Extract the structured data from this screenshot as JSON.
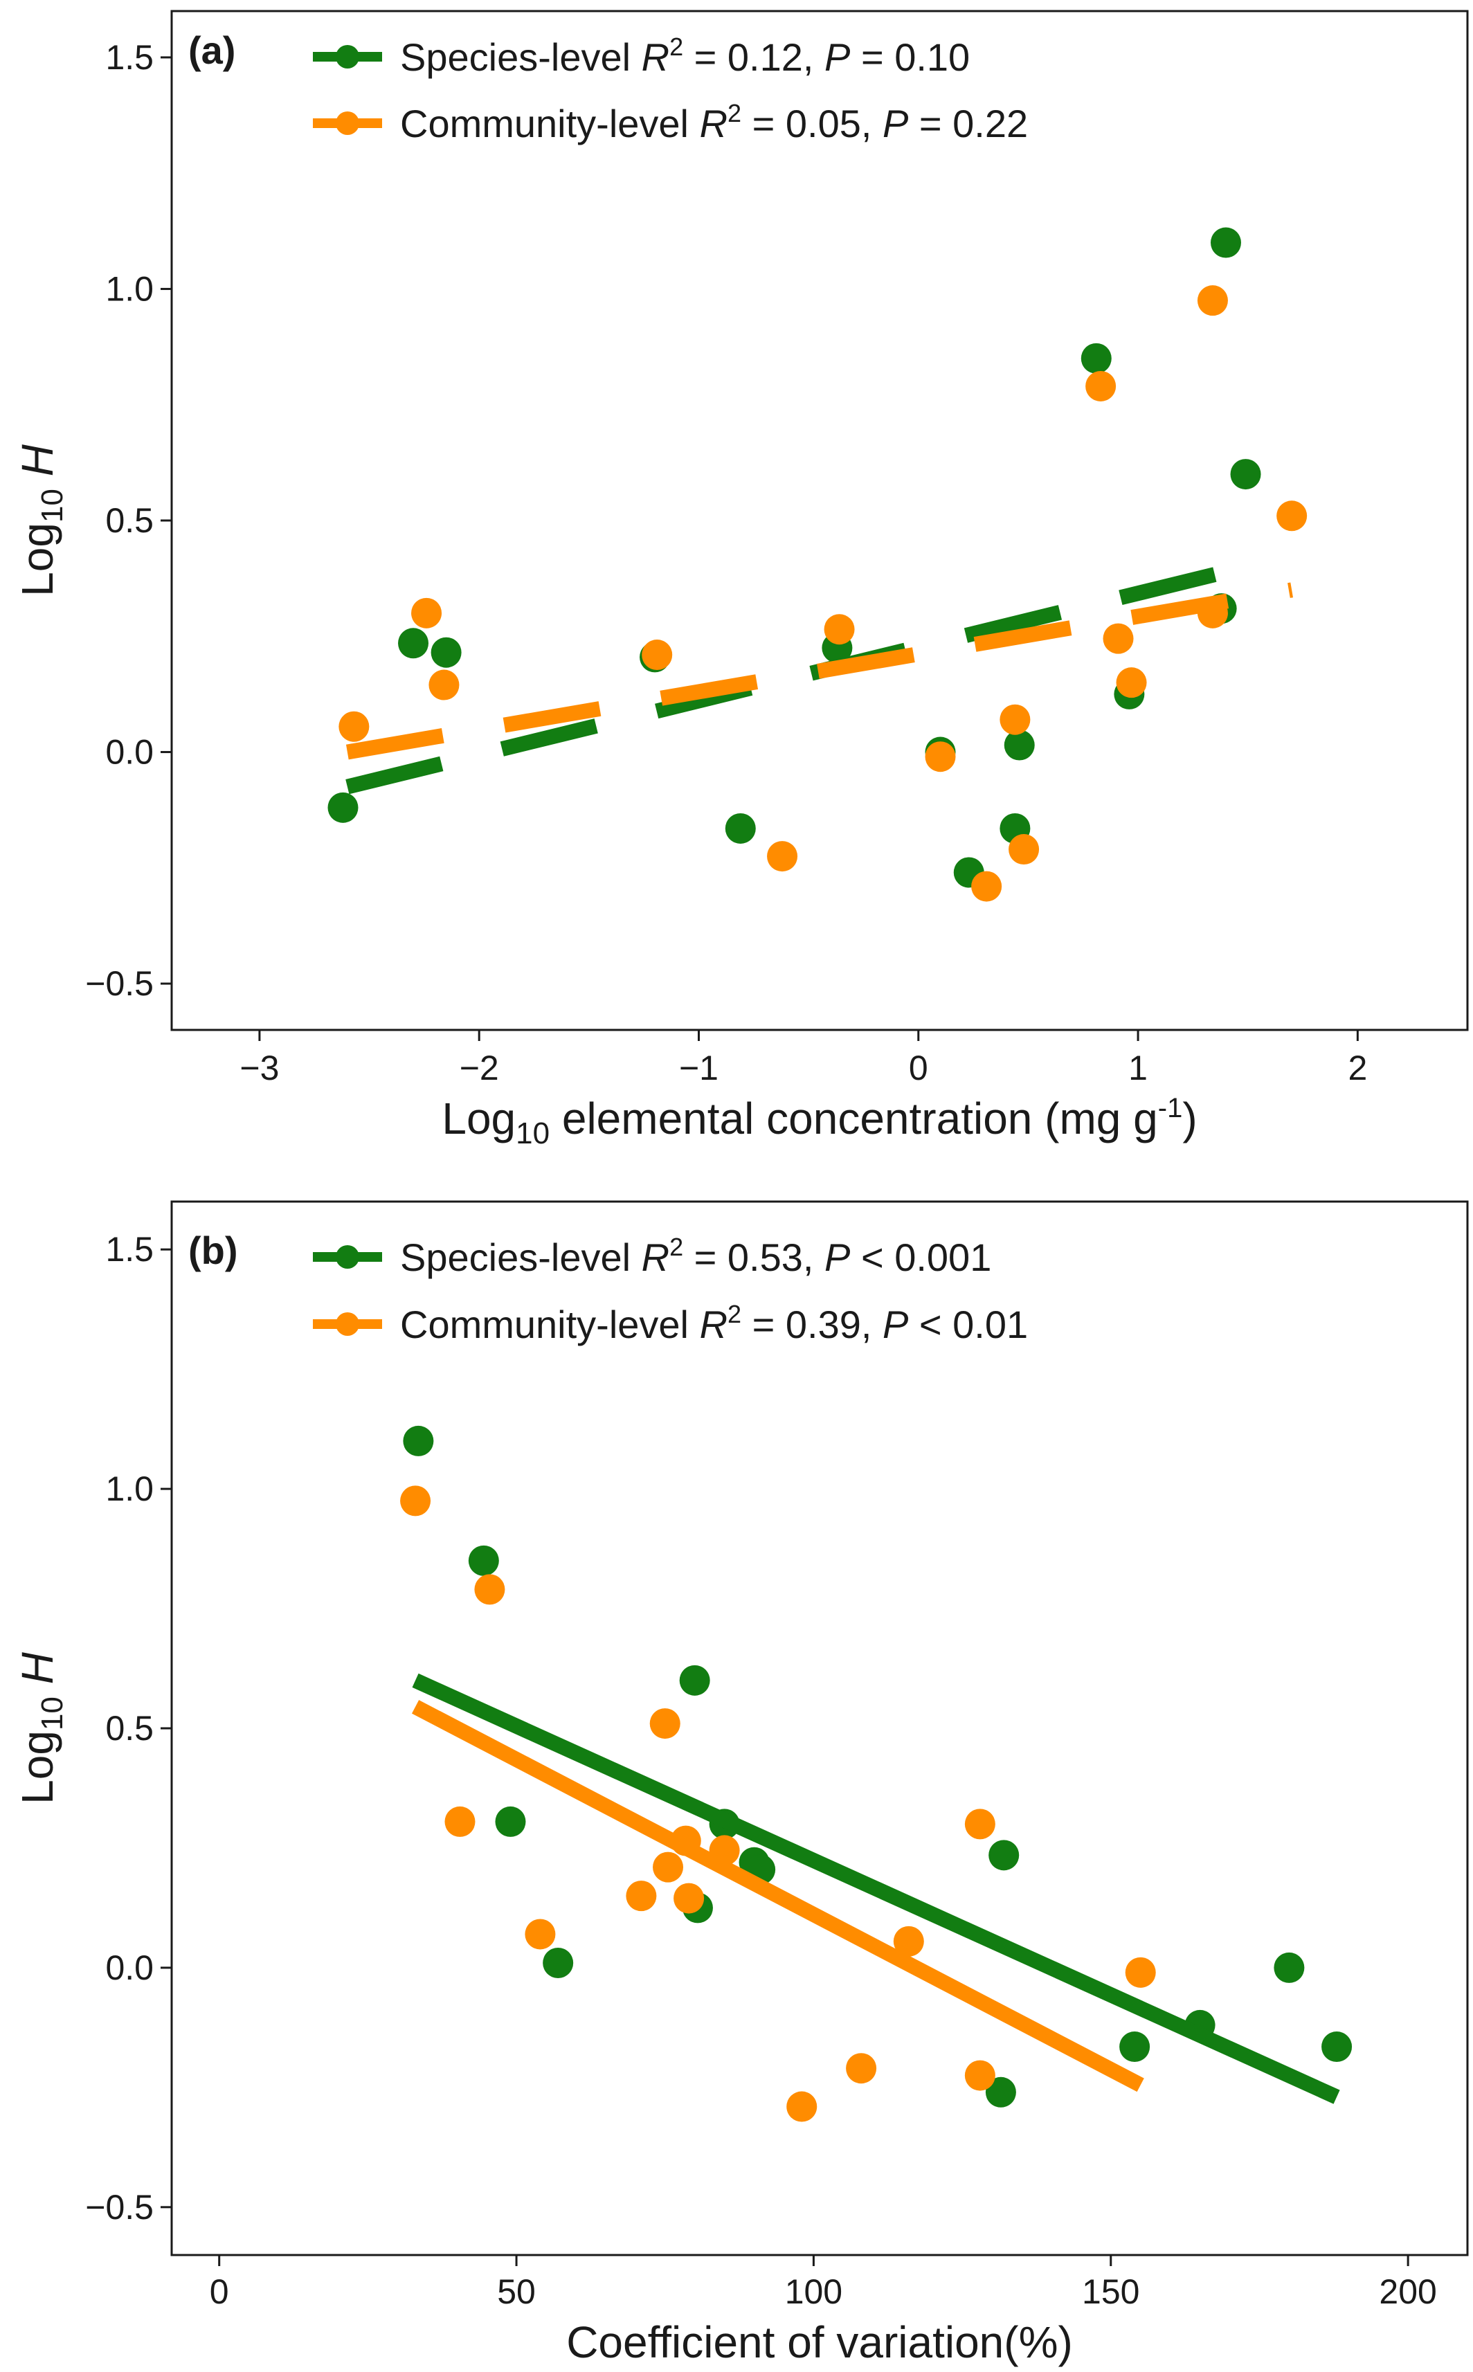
{
  "chart_data": [
    {
      "type": "scatter",
      "panel": "(a)",
      "xlabel": "Log10 elemental concentration (mg g-1)",
      "xlabel_parts": {
        "pre": "Log",
        "sub": "10",
        "mid": " elemental concentration (mg g",
        "sup": "-1",
        "post": ")"
      },
      "ylabel": "Log10 H",
      "ylabel_parts": {
        "pre": "Log",
        "sub": "10",
        "italic": "H"
      },
      "xlim": [
        -3.4,
        2.5
      ],
      "ylim": [
        -0.6,
        1.6
      ],
      "xticks": [
        -3,
        -2,
        -1,
        0,
        1,
        2
      ],
      "xtick_labels": [
        "−3",
        "−2",
        "−1",
        "0",
        "1",
        "2"
      ],
      "yticks": [
        -0.5,
        0.0,
        0.5,
        1.0,
        1.5
      ],
      "ytick_labels": [
        "−0.5",
        "0.0",
        "0.5",
        "1.0",
        "1.5"
      ],
      "grid": false,
      "legend_position": "top-left",
      "series": [
        {
          "name": "Species-level",
          "stat_label": "Species-level R2 = 0.12, P = 0.10",
          "stat_parts": {
            "pre": "Species-level ",
            "r": "R",
            "r_sup": "2",
            "mid": " = 0.12, ",
            "p": "P",
            "post": " = 0.10"
          },
          "color": "#127D12",
          "line_style": "dashed",
          "fit": {
            "x": [
              -2.6,
              1.45
            ],
            "y": [
              -0.075,
              0.395
            ]
          },
          "points": [
            {
              "x": -2.62,
              "y": -0.12
            },
            {
              "x": -2.3,
              "y": 0.235
            },
            {
              "x": -2.15,
              "y": 0.215
            },
            {
              "x": -1.2,
              "y": 0.205
            },
            {
              "x": -0.81,
              "y": -0.165
            },
            {
              "x": -0.37,
              "y": 0.225
            },
            {
              "x": 0.1,
              "y": 0.0
            },
            {
              "x": 0.23,
              "y": -0.26
            },
            {
              "x": 0.44,
              "y": -0.165
            },
            {
              "x": 0.46,
              "y": 0.015
            },
            {
              "x": 0.81,
              "y": 0.85
            },
            {
              "x": 0.96,
              "y": 0.125
            },
            {
              "x": 1.38,
              "y": 0.31
            },
            {
              "x": 1.4,
              "y": 1.1
            },
            {
              "x": 1.49,
              "y": 0.6
            }
          ]
        },
        {
          "name": "Community-level",
          "stat_label": "Community-level R2 = 0.05, P = 0.22",
          "stat_parts": {
            "pre": "Community-level ",
            "r": "R",
            "r_sup": "2",
            "mid": " = 0.05, ",
            "p": "P",
            "post": " = 0.22"
          },
          "color": "#FF8C00",
          "line_style": "dashed",
          "fit": {
            "x": [
              -2.6,
              1.7
            ],
            "y": [
              0.0,
              0.35
            ]
          },
          "points": [
            {
              "x": -2.57,
              "y": 0.055
            },
            {
              "x": -2.24,
              "y": 0.3
            },
            {
              "x": -2.16,
              "y": 0.145
            },
            {
              "x": -1.19,
              "y": 0.21
            },
            {
              "x": -0.62,
              "y": -0.225
            },
            {
              "x": -0.36,
              "y": 0.265
            },
            {
              "x": 0.1,
              "y": -0.01
            },
            {
              "x": 0.31,
              "y": -0.29
            },
            {
              "x": 0.44,
              "y": 0.07
            },
            {
              "x": 0.48,
              "y": -0.21
            },
            {
              "x": 0.83,
              "y": 0.79
            },
            {
              "x": 0.91,
              "y": 0.245
            },
            {
              "x": 0.97,
              "y": 0.15
            },
            {
              "x": 1.34,
              "y": 0.975
            },
            {
              "x": 1.34,
              "y": 0.3
            },
            {
              "x": 1.7,
              "y": 0.51
            }
          ]
        }
      ]
    },
    {
      "type": "scatter",
      "panel": "(b)",
      "xlabel": "Coefficient of variation(%)",
      "ylabel": "Log10 H",
      "ylabel_parts": {
        "pre": "Log",
        "sub": "10",
        "italic": "H"
      },
      "xlim": [
        -8,
        210
      ],
      "ylim": [
        -0.6,
        1.6
      ],
      "xticks": [
        0,
        50,
        100,
        150,
        200
      ],
      "xtick_labels": [
        "0",
        "50",
        "100",
        "150",
        "200"
      ],
      "yticks": [
        -0.5,
        0.0,
        0.5,
        1.0,
        1.5
      ],
      "ytick_labels": [
        "−0.5",
        "0.0",
        "0.5",
        "1.0",
        "1.5"
      ],
      "grid": false,
      "legend_position": "top-left",
      "series": [
        {
          "name": "Species-level",
          "stat_label": "Species-level R2 = 0.53, P < 0.001",
          "stat_parts": {
            "pre": "Species-level ",
            "r": "R",
            "r_sup": "2",
            "mid": " = 0.53, ",
            "p": "P",
            "post": " < 0.001"
          },
          "color": "#127D12",
          "line_style": "solid",
          "fit": {
            "x": [
              33,
              188
            ],
            "y": [
              0.6,
              -0.27
            ]
          },
          "points": [
            {
              "x": 33.5,
              "y": 1.1
            },
            {
              "x": 44.5,
              "y": 0.85
            },
            {
              "x": 49,
              "y": 0.305
            },
            {
              "x": 57,
              "y": 0.01
            },
            {
              "x": 80,
              "y": 0.6
            },
            {
              "x": 80.5,
              "y": 0.125
            },
            {
              "x": 85,
              "y": 0.3
            },
            {
              "x": 90,
              "y": 0.22
            },
            {
              "x": 91,
              "y": 0.205
            },
            {
              "x": 131.5,
              "y": -0.26
            },
            {
              "x": 132,
              "y": 0.235
            },
            {
              "x": 154,
              "y": -0.165
            },
            {
              "x": 165,
              "y": -0.12
            },
            {
              "x": 180,
              "y": 0.0
            },
            {
              "x": 188,
              "y": -0.165
            }
          ]
        },
        {
          "name": "Community-level",
          "stat_label": "Community-level R2 = 0.39, P < 0.01",
          "stat_parts": {
            "pre": "Community-level ",
            "r": "R",
            "r_sup": "2",
            "mid": " = 0.39, ",
            "p": "P",
            "post": " < 0.01"
          },
          "color": "#FF8C00",
          "line_style": "solid",
          "fit": {
            "x": [
              33,
              155
            ],
            "y": [
              0.545,
              -0.245
            ]
          },
          "points": [
            {
              "x": 33,
              "y": 0.975
            },
            {
              "x": 40.5,
              "y": 0.305
            },
            {
              "x": 45.5,
              "y": 0.79
            },
            {
              "x": 54,
              "y": 0.07
            },
            {
              "x": 71,
              "y": 0.15
            },
            {
              "x": 75,
              "y": 0.51
            },
            {
              "x": 75.5,
              "y": 0.21
            },
            {
              "x": 78.5,
              "y": 0.265
            },
            {
              "x": 79,
              "y": 0.145
            },
            {
              "x": 85,
              "y": 0.245
            },
            {
              "x": 98,
              "y": -0.29
            },
            {
              "x": 108,
              "y": -0.21
            },
            {
              "x": 116,
              "y": 0.055
            },
            {
              "x": 128,
              "y": 0.3
            },
            {
              "x": 128,
              "y": -0.225
            },
            {
              "x": 155,
              "y": -0.01
            }
          ]
        }
      ]
    }
  ]
}
